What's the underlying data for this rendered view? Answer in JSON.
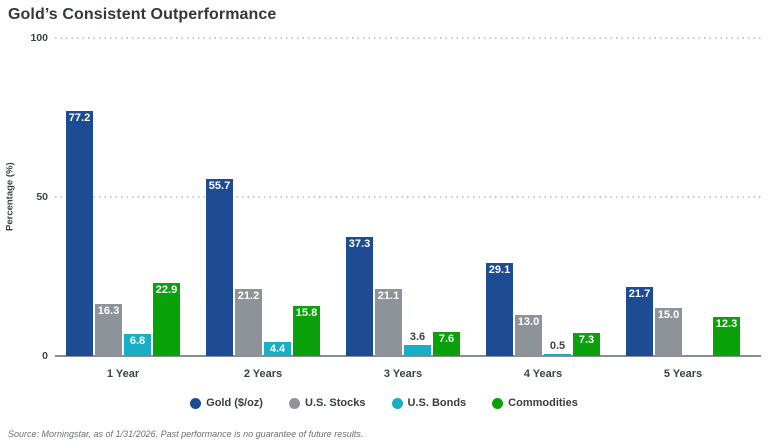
{
  "title": "Gold’s Consistent Outperformance",
  "footer": "Source: Morningstar, as of 1/31/2026. Past performance is no guarantee of future results.",
  "chart_data": {
    "type": "bar",
    "title": "Gold’s Consistent Outperformance",
    "xlabel": "",
    "ylabel": "Percentage (%)",
    "ylim": [
      0,
      100
    ],
    "yticks": [
      0,
      50,
      100
    ],
    "grid": "horizontal dotted gridlines at 50 and 100, solid baseline at 0",
    "legend_position": "bottom-center",
    "value_label_decimals": 1,
    "categories": [
      "1 Year",
      "2 Years",
      "3 Years",
      "4 Years",
      "5 Years"
    ],
    "series": [
      {
        "name": "Gold ($/oz)",
        "color": "#1d4b94",
        "values": [
          77.2,
          55.7,
          37.3,
          29.1,
          21.7
        ]
      },
      {
        "name": "U.S. Stocks",
        "color": "#8e9399",
        "values": [
          16.3,
          21.2,
          21.1,
          13.0,
          15.0
        ]
      },
      {
        "name": "U.S. Bonds",
        "color": "#18aec6",
        "values": [
          6.8,
          4.4,
          3.6,
          0.5,
          null
        ]
      },
      {
        "name": "Commodities",
        "color": "#0aa10a",
        "values": [
          22.9,
          15.8,
          7.6,
          7.3,
          12.3
        ]
      }
    ]
  }
}
